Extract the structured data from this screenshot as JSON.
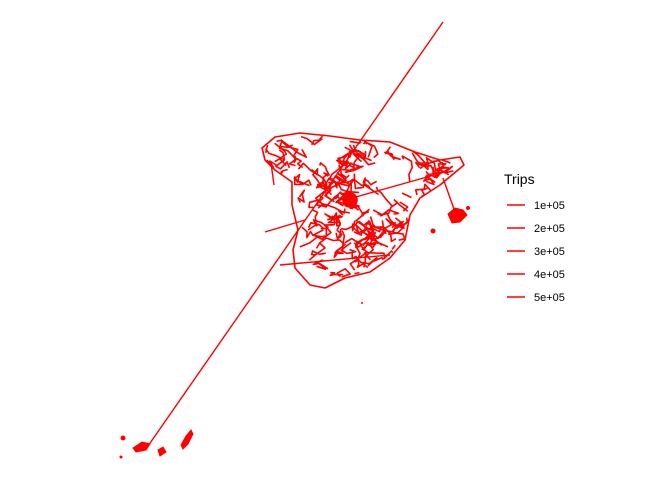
{
  "map": {
    "route_color": "#ff0000",
    "background": "#ffffff"
  },
  "legend": {
    "title": "Trips",
    "entries": [
      {
        "label": "1e+05"
      },
      {
        "label": "2e+05"
      },
      {
        "label": "3e+05"
      },
      {
        "label": "4e+05"
      },
      {
        "label": "5e+05"
      }
    ]
  }
}
